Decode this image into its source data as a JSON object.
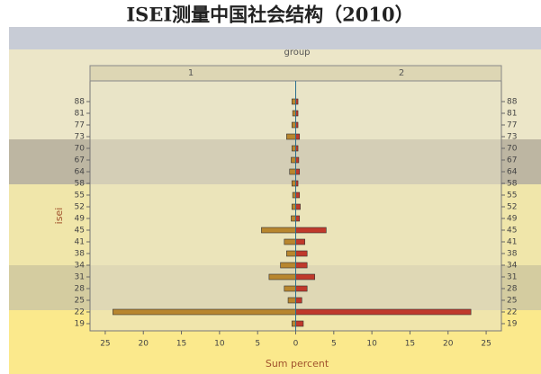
{
  "chart_data": {
    "type": "pyramid",
    "title": "ISEI测量中国社会结构（2010）",
    "facet_label": "group",
    "x_label": "Sum percent",
    "y_label": "isei",
    "categories": [
      "88",
      "81",
      "77",
      "73",
      "70",
      "67",
      "64",
      "58",
      "55",
      "52",
      "49",
      "45",
      "41",
      "38",
      "34",
      "31",
      "28",
      "25",
      "22",
      "19"
    ],
    "series": [
      {
        "name": "1",
        "color": "#b8862e",
        "values": [
          0.5,
          0.4,
          0.5,
          1.2,
          0.5,
          0.6,
          0.8,
          0.5,
          0.4,
          0.5,
          0.6,
          4.5,
          1.5,
          1.2,
          2,
          3.5,
          1.5,
          1,
          24,
          0.5
        ]
      },
      {
        "name": "2",
        "color": "#c0392b",
        "values": [
          0.3,
          0.3,
          0.3,
          0.5,
          0.3,
          0.4,
          0.5,
          0.3,
          0.5,
          0.6,
          0.5,
          4,
          1.2,
          1.5,
          1.5,
          2.5,
          1.5,
          0.8,
          23,
          1
        ]
      }
    ],
    "xlim": [
      -27,
      27
    ],
    "xticks": [
      {
        "value": -25,
        "label": "25"
      },
      {
        "value": -20,
        "label": "20"
      },
      {
        "value": -15,
        "label": "15"
      },
      {
        "value": -10,
        "label": "10"
      },
      {
        "value": -5,
        "label": "5"
      },
      0,
      5,
      10,
      15,
      20,
      25
    ]
  }
}
